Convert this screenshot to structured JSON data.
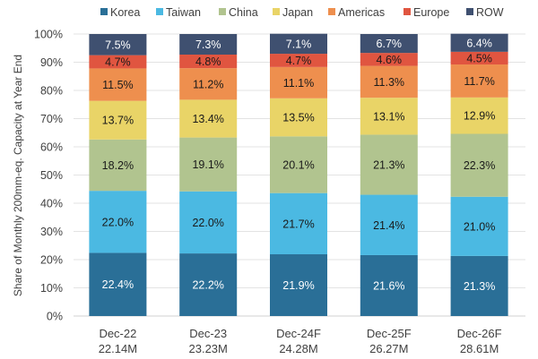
{
  "chart_data": {
    "type": "bar",
    "stacked": true,
    "title": "",
    "xlabel": "",
    "ylabel": "Share of Monthly 200mm-eq. Capacity at Year End",
    "ylim": [
      0,
      100
    ],
    "yticks": [
      "0%",
      "10%",
      "20%",
      "30%",
      "40%",
      "50%",
      "60%",
      "70%",
      "80%",
      "90%",
      "100%"
    ],
    "grid": true,
    "legend_position": "top",
    "categories": [
      "Dec-22",
      "Dec-23",
      "Dec-24F",
      "Dec-25F",
      "Dec-26F"
    ],
    "category_sublabels": [
      "22.14M",
      "23.23M",
      "24.28M",
      "26.27M",
      "28.61M"
    ],
    "series": [
      {
        "name": "Korea",
        "color": "#2a6f97",
        "label_color": "#ffffff",
        "values": [
          22.4,
          22.2,
          21.9,
          21.6,
          21.3
        ]
      },
      {
        "name": "Taiwan",
        "color": "#4bb9e2",
        "label_color": "#1a1a1a",
        "values": [
          22.0,
          22.0,
          21.7,
          21.4,
          21.0
        ]
      },
      {
        "name": "China",
        "color": "#b1c48f",
        "label_color": "#1a1a1a",
        "values": [
          18.2,
          19.1,
          20.1,
          21.3,
          22.3
        ]
      },
      {
        "name": "Japan",
        "color": "#e9d467",
        "label_color": "#1a1a1a",
        "values": [
          13.7,
          13.4,
          13.5,
          13.1,
          12.9
        ]
      },
      {
        "name": "Americas",
        "color": "#ee8f4e",
        "label_color": "#1a1a1a",
        "values": [
          11.5,
          11.2,
          11.1,
          11.3,
          11.7
        ]
      },
      {
        "name": "Europe",
        "color": "#e05540",
        "label_color": "#1a1a1a",
        "values": [
          4.7,
          4.8,
          4.7,
          4.6,
          4.5
        ]
      },
      {
        "name": "ROW",
        "color": "#3f5070",
        "label_color": "#ffffff",
        "values": [
          7.5,
          7.3,
          7.1,
          6.7,
          6.4
        ]
      }
    ]
  }
}
